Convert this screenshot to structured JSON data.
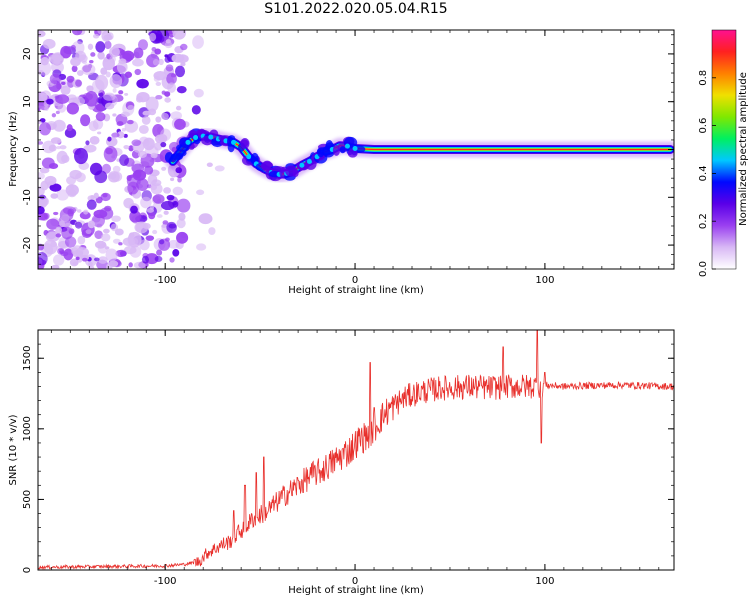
{
  "title": "S101.2022.020.05.04.R15",
  "colors": {
    "snr_line": "#e8302c",
    "axis": "#000000",
    "background": "#ffffff",
    "colormap": [
      "#ffffff",
      "#d8b8f5",
      "#9a40f0",
      "#5a00e8",
      "#0008ff",
      "#00c8ff",
      "#00f060",
      "#80e800",
      "#f0e000",
      "#ff8000",
      "#ff2020",
      "#ff1090"
    ]
  },
  "chart_data": [
    {
      "type": "heatmap",
      "xlabel": "Height of straight line (km)",
      "ylabel": "Frequency (Hz)",
      "xlim": [
        -167,
        168
      ],
      "ylim": [
        -25,
        25
      ],
      "xticks": [
        -100,
        0,
        100
      ],
      "xtick_labels": [
        "-100",
        "0",
        "100"
      ],
      "yticks": [
        -20,
        -10,
        0,
        10,
        20
      ],
      "ytick_labels": [
        "-20",
        "-10",
        "0",
        "10",
        "20"
      ],
      "grid": false,
      "colorbar": {
        "label": "Normalized spectral amplitude",
        "range": [
          0,
          1
        ],
        "ticks": [
          0.0,
          0.2,
          0.4,
          0.6,
          0.8
        ],
        "tick_labels": [
          "0.0",
          "0.2",
          "0.4",
          "0.6",
          "0.8"
        ]
      },
      "ridge": {
        "x": [
          -96,
          -92,
          -88,
          -84,
          -80,
          -76,
          -72,
          -68,
          -64,
          -60,
          -56,
          -52,
          -48,
          -44,
          -40,
          -36,
          -32,
          -28,
          -24,
          -20,
          -16,
          -12,
          -8,
          -4,
          0,
          5,
          10,
          20,
          40,
          60,
          80,
          100,
          120,
          140,
          166
        ],
        "y": [
          -2.5,
          -0.5,
          1.5,
          2.5,
          2.8,
          2.6,
          2.2,
          1.8,
          1.5,
          0.5,
          -1.5,
          -3.0,
          -4.0,
          -4.8,
          -5.2,
          -5.0,
          -4.3,
          -3.3,
          -2.5,
          -1.5,
          -0.5,
          0.0,
          0.8,
          0.7,
          0.2,
          0.1,
          0.0,
          0.0,
          0.0,
          0.0,
          0.0,
          0.0,
          0.0,
          0.0,
          0.0
        ]
      },
      "noise_region_x": [
        -167,
        -90
      ]
    },
    {
      "type": "line",
      "xlabel": "Height of straight line (km)",
      "ylabel": "SNR (10 * v/v)",
      "xlim": [
        -167,
        168
      ],
      "ylim": [
        0,
        1700
      ],
      "xticks": [
        -100,
        0,
        100
      ],
      "xtick_labels": [
        "-100",
        "0",
        "100"
      ],
      "yticks": [
        0,
        500,
        1000,
        1500
      ],
      "ytick_labels": [
        "0",
        "500",
        "1000",
        "1500"
      ],
      "grid": false,
      "series": [
        {
          "x": [
            -167,
            -150,
            -130,
            -110,
            -100,
            -90,
            -82,
            -78,
            -74,
            -70,
            -66,
            -62,
            -58,
            -54,
            -50,
            -46,
            -42,
            -38,
            -34,
            -30,
            -26,
            -22,
            -18,
            -14,
            -10,
            -6,
            -2,
            2,
            6,
            10,
            14,
            18,
            22,
            26,
            30,
            34,
            38,
            42,
            46,
            50,
            60,
            70,
            80,
            90,
            96,
            100,
            110,
            120,
            140,
            168
          ],
          "y": [
            20,
            22,
            25,
            28,
            30,
            40,
            60,
            120,
            150,
            180,
            200,
            260,
            300,
            360,
            390,
            420,
            470,
            520,
            560,
            600,
            640,
            680,
            700,
            740,
            780,
            820,
            860,
            920,
            950,
            1000,
            1080,
            1140,
            1180,
            1220,
            1240,
            1260,
            1270,
            1280,
            1290,
            1290,
            1300,
            1290,
            1300,
            1300,
            1300,
            1310,
            1300,
            1305,
            1310,
            1300
          ]
        }
      ],
      "spikes": {
        "x": [
          -64,
          -58,
          -52,
          -48,
          8,
          10,
          78,
          96,
          98,
          100
        ],
        "y": [
          420,
          600,
          690,
          800,
          1470,
          1150,
          1580,
          1700,
          900,
          1400
        ]
      }
    }
  ]
}
